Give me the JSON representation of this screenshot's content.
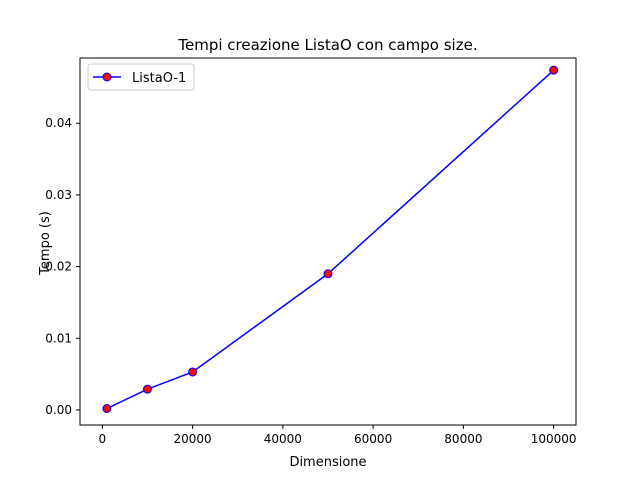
{
  "chart_data": {
    "type": "line",
    "title": "Tempi creazione ListaO con campo size.",
    "xlabel": "Dimensione",
    "ylabel": "Tempo (s)",
    "xlim": [
      -4950,
      104950
    ],
    "ylim": [
      -0.0021,
      0.0491
    ],
    "x_ticks": [
      0,
      20000,
      40000,
      60000,
      80000,
      100000
    ],
    "x_tick_labels": [
      "0",
      "20000",
      "40000",
      "60000",
      "80000",
      "100000"
    ],
    "y_ticks": [
      0.0,
      0.01,
      0.02,
      0.03,
      0.04
    ],
    "y_tick_labels": [
      "0.00",
      "0.01",
      "0.02",
      "0.03",
      "0.04"
    ],
    "grid": false,
    "legend_position": "upper-left",
    "series": [
      {
        "name": "ListaO-1",
        "x": [
          1000,
          10000,
          20000,
          50000,
          100000
        ],
        "y": [
          0.0002,
          0.0029,
          0.0053,
          0.019,
          0.0474
        ],
        "line_color": "#0000ff",
        "marker_face_color": "#ff0000",
        "marker_edge_color": "#0000ff"
      }
    ]
  }
}
